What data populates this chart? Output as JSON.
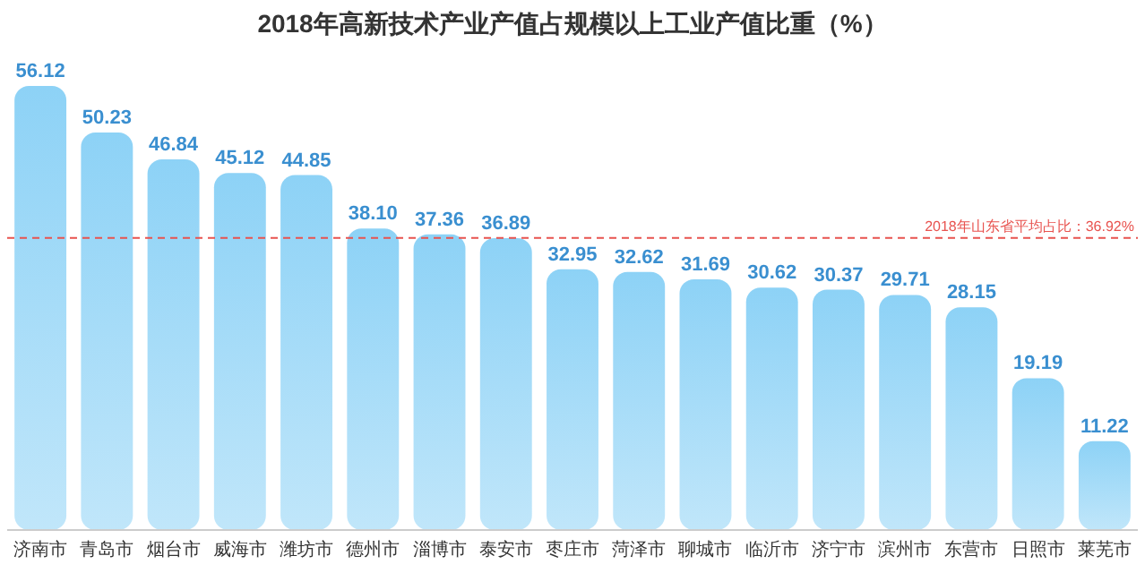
{
  "chart_data": {
    "type": "bar",
    "title": "2018年高新技术产业产值占规模以上工业产值比重（%）",
    "categories": [
      "济南市",
      "青岛市",
      "烟台市",
      "威海市",
      "潍坊市",
      "德州市",
      "淄博市",
      "泰安市",
      "枣庄市",
      "菏泽市",
      "聊城市",
      "临沂市",
      "济宁市",
      "滨州市",
      "东营市",
      "日照市",
      "莱芜市"
    ],
    "values": [
      56.12,
      50.23,
      46.84,
      45.12,
      44.85,
      38.1,
      37.36,
      36.89,
      32.95,
      32.62,
      31.69,
      30.62,
      30.37,
      29.71,
      28.15,
      19.19,
      11.22
    ],
    "value_labels": [
      "56.12",
      "50.23",
      "46.84",
      "45.12",
      "44.85",
      "38.10",
      "37.36",
      "36.89",
      "32.95",
      "32.62",
      "31.69",
      "30.62",
      "30.37",
      "29.71",
      "28.15",
      "19.19",
      "11.22"
    ],
    "color": "#8dd2f6",
    "ref_lines": [
      {
        "axis": "y",
        "value": 36.92,
        "label": "2018年山东省平均占比：36.92%",
        "color": "#e8534f",
        "line_style": "dashed"
      }
    ]
  }
}
